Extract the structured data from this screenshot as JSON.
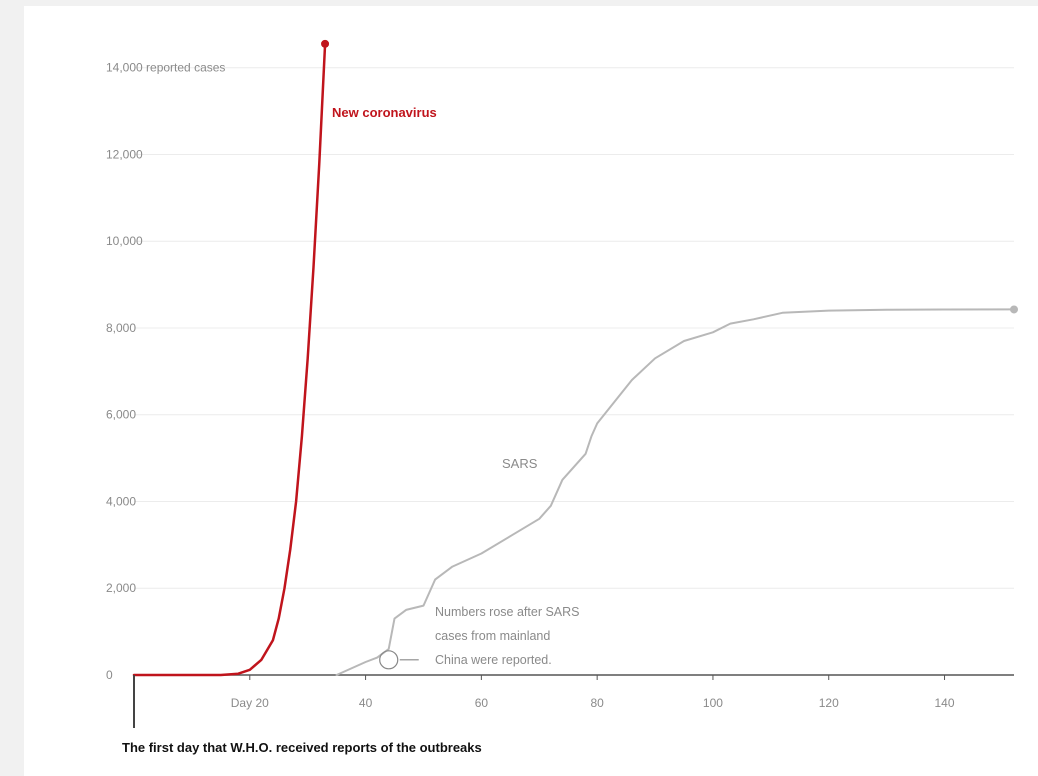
{
  "chart_data": {
    "type": "line",
    "title": "",
    "xlabel": "",
    "ylabel": "",
    "xlim": [
      0,
      152
    ],
    "ylim": [
      0,
      14500
    ],
    "y_ticks": [
      {
        "value": 0,
        "label": "0"
      },
      {
        "value": 2000,
        "label": "2,000"
      },
      {
        "value": 4000,
        "label": "4,000"
      },
      {
        "value": 6000,
        "label": "6,000"
      },
      {
        "value": 8000,
        "label": "8,000"
      },
      {
        "value": 10000,
        "label": "10,000"
      },
      {
        "value": 12000,
        "label": "12,000"
      },
      {
        "value": 14000,
        "label": "14,000 reported cases"
      }
    ],
    "x_ticks": [
      {
        "value": 20,
        "label": "Day 20"
      },
      {
        "value": 40,
        "label": "40"
      },
      {
        "value": 60,
        "label": "60"
      },
      {
        "value": 80,
        "label": "80"
      },
      {
        "value": 100,
        "label": "100"
      },
      {
        "value": 120,
        "label": "120"
      },
      {
        "value": 140,
        "label": "140"
      }
    ],
    "grid": true,
    "series": [
      {
        "name": "New coronavirus",
        "color": "#c0141c",
        "x": [
          0,
          5,
          10,
          15,
          18,
          20,
          22,
          24,
          25,
          26,
          27,
          28,
          29,
          30,
          31,
          32,
          33
        ],
        "y": [
          0,
          0,
          0,
          0,
          30,
          120,
          350,
          800,
          1300,
          2000,
          2900,
          4000,
          5500,
          7300,
          9400,
          11800,
          14550
        ]
      },
      {
        "name": "SARS",
        "color": "#b8b8b8",
        "x": [
          35,
          40,
          42,
          44,
          45,
          47,
          50,
          51,
          52,
          55,
          60,
          65,
          70,
          72,
          74,
          76,
          78,
          79,
          80,
          83,
          86,
          90,
          95,
          100,
          103,
          107,
          112,
          120,
          130,
          140,
          152
        ],
        "y": [
          0,
          300,
          400,
          600,
          1300,
          1500,
          1600,
          1900,
          2200,
          2500,
          2800,
          3200,
          3600,
          3900,
          4500,
          4800,
          5100,
          5500,
          5800,
          6300,
          6800,
          7300,
          7700,
          7900,
          8100,
          8200,
          8350,
          8400,
          8420,
          8425,
          8427
        ]
      }
    ],
    "annotations": [
      {
        "text": "New coronavirus",
        "target": "series0"
      },
      {
        "text": "SARS",
        "target": "series1"
      },
      {
        "lines": [
          "Numbers rose after SARS",
          "cases from mainland",
          "China were reported."
        ],
        "x": 44,
        "y": 350
      },
      {
        "text": "The first day that W.H.O. received reports of the outbreaks",
        "x": 0
      }
    ]
  }
}
